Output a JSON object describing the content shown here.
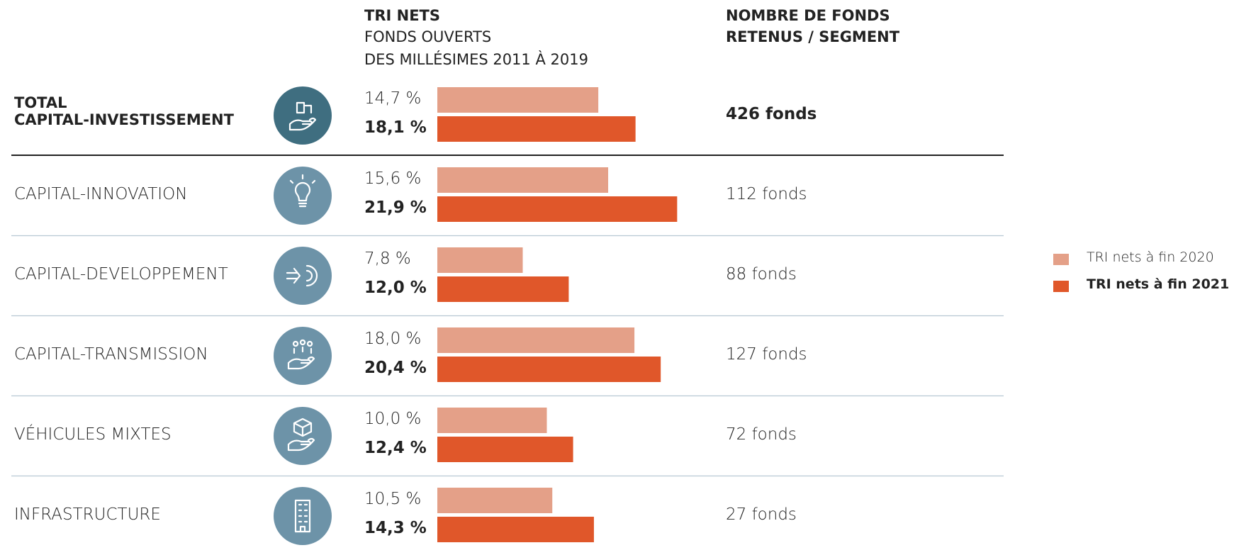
{
  "chart_data": {
    "type": "bar",
    "orientation": "horizontal",
    "headers": {
      "tri": {
        "title": "TRI NETS",
        "lines": [
          "FONDS OUVERTS",
          "DES MILLÉSIMES 2011 À 2019"
        ]
      },
      "count": {
        "lines": [
          "NOMBRE DE FONDS",
          "RETENUS / SEGMENT"
        ]
      }
    },
    "categories": [
      "TOTAL\nCAPITAL-INVESTISSEMENT",
      "CAPITAL-INNOVATION",
      "CAPITAL-DEVELOPPEMENT",
      "CAPITAL-TRANSMISSION",
      "VÉHICULES MIXTES",
      "INFRASTRUCTURE"
    ],
    "series": [
      {
        "name": "TRI nets à fin 2020",
        "color": "#e4a088",
        "values": [
          14.7,
          15.6,
          7.8,
          18.0,
          10.0,
          10.5
        ],
        "value_labels": [
          "14,7 %",
          "15,6 %",
          "7,8 %",
          "18,0 %",
          "10,0 %",
          "10,5 %"
        ]
      },
      {
        "name": "TRI nets à fin 2021",
        "color": "#e0572a",
        "values": [
          18.1,
          21.9,
          12.0,
          20.4,
          12.4,
          14.3
        ],
        "value_labels": [
          "18,1 %",
          "21,9 %",
          "12,0 %",
          "20,4 %",
          "12,4 %",
          "14,3 %"
        ]
      }
    ],
    "fund_counts": [
      "426 fonds",
      "112 fonds",
      "88 fonds",
      "127 fonds",
      "72 fonds",
      "27 fonds"
    ]
  }
}
